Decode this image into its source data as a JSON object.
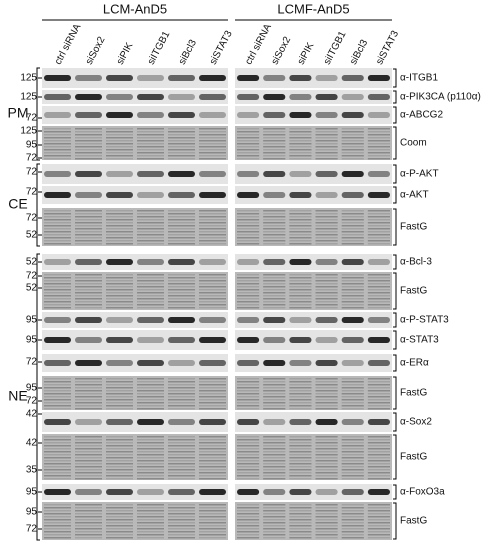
{
  "groups": [
    "LCM-AnD5",
    "LCMF-AnD5"
  ],
  "lanes": [
    "ctrl siRNA",
    "siSox2",
    "siPIK",
    "siITGB1",
    "siBcl3",
    "siSTAT3"
  ],
  "sections": [
    {
      "label": "PM"
    },
    {
      "label": "CE"
    },
    {
      "label": "NE"
    }
  ],
  "rows": [
    {
      "label": "α-ITGB1",
      "markers": [
        "125"
      ]
    },
    {
      "label": "α-PIK3CA (p110α)",
      "markers": [
        "125"
      ]
    },
    {
      "label": "α-ABCG2",
      "markers": [
        "72"
      ]
    },
    {
      "label": "Coom",
      "markers": [
        "125",
        "95",
        "72"
      ]
    },
    {
      "label": "α-P-AKT",
      "markers": [
        "72"
      ]
    },
    {
      "label": "α-AKT",
      "markers": [
        "72"
      ]
    },
    {
      "label": "FastG",
      "markers": [
        "72",
        "52"
      ]
    },
    {
      "label": "α-Bcl-3",
      "markers": [
        "52"
      ]
    },
    {
      "label": "FastG",
      "markers": [
        "72",
        "52"
      ]
    },
    {
      "label": "α-P-STAT3",
      "markers": [
        "95"
      ]
    },
    {
      "label": "α-STAT3",
      "markers": [
        "95"
      ]
    },
    {
      "label": "α-ERα",
      "markers": [
        "72"
      ]
    },
    {
      "label": "FastG",
      "markers": [
        "95",
        "72"
      ]
    },
    {
      "label": "α-Sox2",
      "markers": [
        "42"
      ]
    },
    {
      "label": "FastG",
      "markers": [
        "42",
        "35"
      ]
    },
    {
      "label": "α-FoxO3a",
      "markers": [
        "95"
      ]
    },
    {
      "label": "FastG",
      "markers": [
        "95",
        "72"
      ]
    }
  ]
}
